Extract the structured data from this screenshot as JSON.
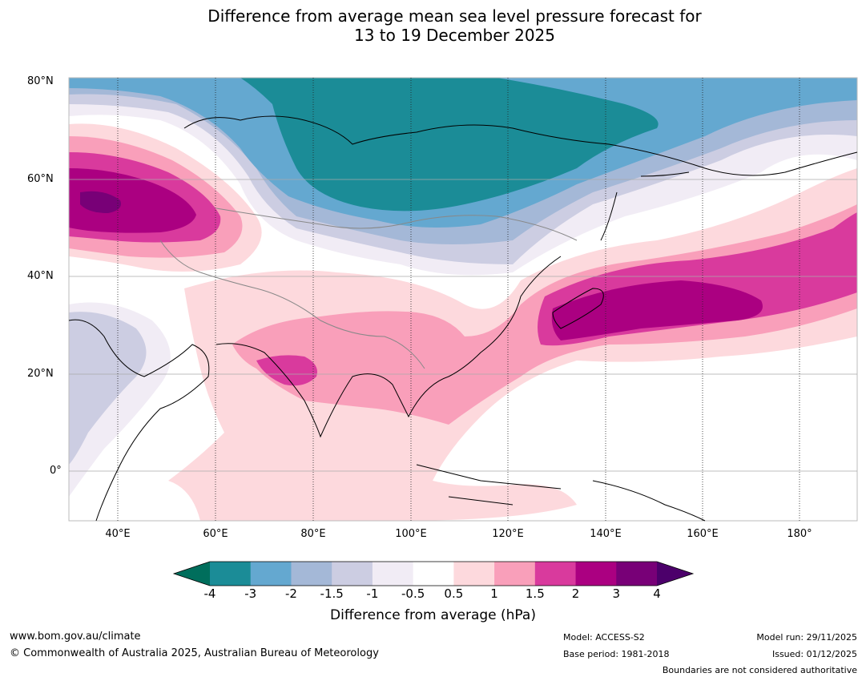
{
  "title": {
    "line1": "Difference from average mean sea level pressure forecast for",
    "line2": "13 to 19 December 2025"
  },
  "axes": {
    "lat_labels": [
      "80°N",
      "60°N",
      "40°N",
      "20°N",
      "0°"
    ],
    "lon_labels": [
      "40°E",
      "60°E",
      "80°E",
      "100°E",
      "120°E",
      "140°E",
      "160°E",
      "180°"
    ]
  },
  "colorbar": {
    "ticks": [
      "-4",
      "-3",
      "-2",
      "-1.5",
      "-1",
      "-0.5",
      "0.5",
      "1",
      "1.5",
      "2",
      "3",
      "4"
    ],
    "colors": [
      "#006e5c",
      "#1b8c97",
      "#64a8d0",
      "#a4b8d7",
      "#cccde2",
      "#f1ecf5",
      "#ffffff",
      "#fdd9dd",
      "#f99fba",
      "#d93a9d",
      "#ab0081",
      "#780077",
      "#4c006b"
    ],
    "label": "Difference from average (hPa)"
  },
  "footer": {
    "website": "www.bom.gov.au/climate",
    "copyright": "© Commonwealth of Australia 2025, Australian Bureau of Meteorology",
    "model": "Model: ACCESS-S2",
    "base_period": "Base period: 1981-2018",
    "model_run": "Model run: 29/11/2025",
    "issued": "Issued: 01/12/2025",
    "disclaimer": "Boundaries are not considered authoritative"
  }
}
